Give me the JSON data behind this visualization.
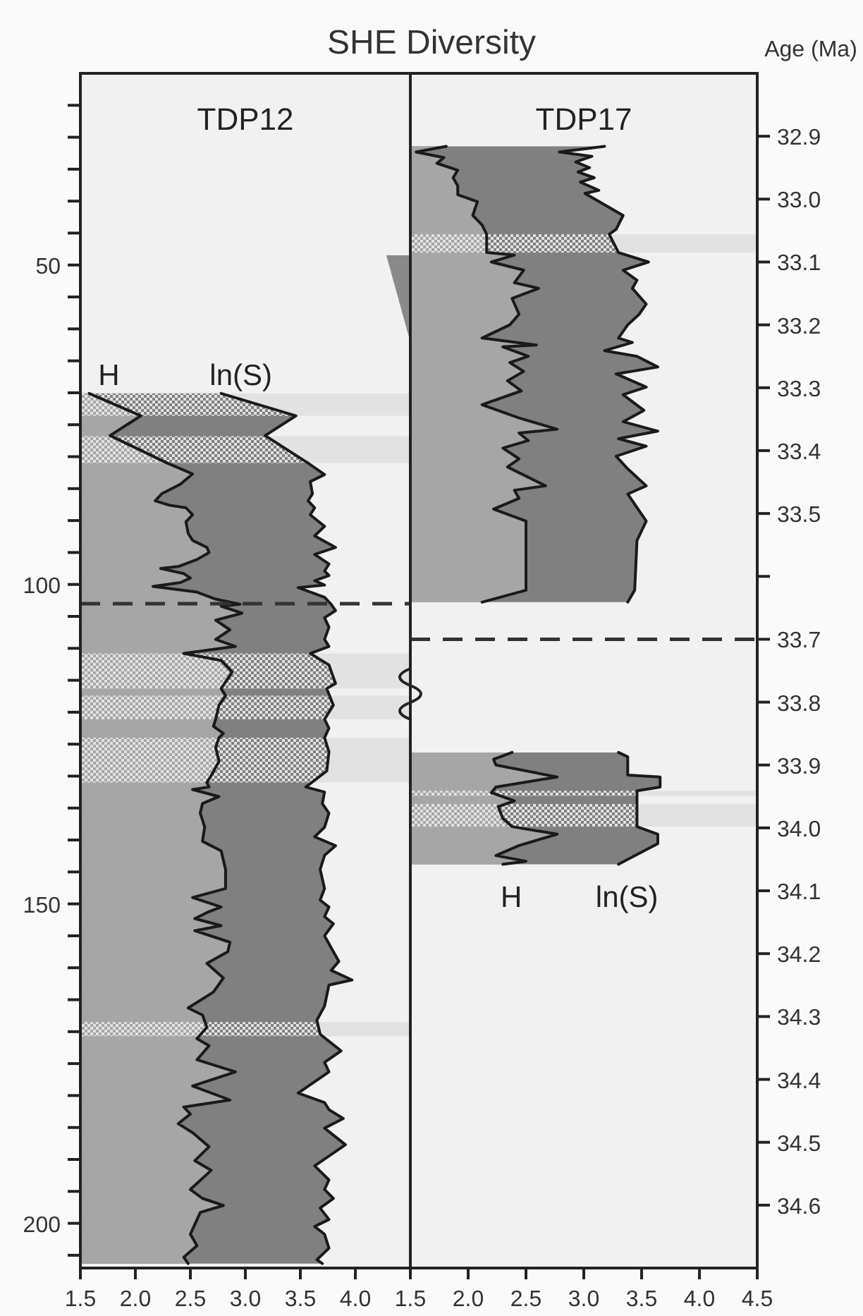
{
  "chart_data": [
    {
      "type": "area",
      "orientation": "horizontal",
      "title": "SHE Diversity",
      "subtitle": "TDP12",
      "xlim": [
        1.5,
        4.5
      ],
      "xticks": [
        1.5,
        {
          "value": 2,
          "label": "2.0"
        },
        2.5,
        {
          "value": 3,
          "label": "3.0"
        },
        3.5,
        {
          "value": 4,
          "label": "4.0"
        },
        {
          "value": 4.5,
          "label": null
        }
      ],
      "ylim": [
        207,
        20
      ],
      "yticks": [
        {
          "value": 25,
          "label": null
        },
        {
          "value": 30,
          "label": null
        },
        {
          "value": 35,
          "label": null
        },
        {
          "value": 40,
          "label": null
        },
        {
          "value": 45,
          "label": null
        },
        50,
        {
          "value": 55,
          "label": null
        },
        {
          "value": 60,
          "label": null
        },
        {
          "value": 65,
          "label": null
        },
        {
          "value": 70,
          "label": null
        },
        {
          "value": 75,
          "label": null
        },
        {
          "value": 80,
          "label": null
        },
        {
          "value": 85,
          "label": null
        },
        {
          "value": 90,
          "label": null
        },
        {
          "value": 95,
          "label": null
        },
        100,
        {
          "value": 105,
          "label": null
        },
        {
          "value": 110,
          "label": null
        },
        {
          "value": 115,
          "label": null
        },
        {
          "value": 120,
          "label": null
        },
        {
          "value": 125,
          "label": null
        },
        {
          "value": 130,
          "label": null
        },
        {
          "value": 135,
          "label": null
        },
        {
          "value": 140,
          "label": null
        },
        {
          "value": 145,
          "label": null
        },
        150,
        {
          "value": 155,
          "label": null
        },
        {
          "value": 160,
          "label": null
        },
        {
          "value": 165,
          "label": null
        },
        {
          "value": 170,
          "label": null
        },
        {
          "value": 175,
          "label": null
        },
        {
          "value": 180,
          "label": null
        },
        {
          "value": 185,
          "label": null
        },
        {
          "value": 190,
          "label": null
        },
        {
          "value": 195,
          "label": null
        },
        200,
        {
          "value": 205,
          "label": null
        }
      ],
      "series": [
        {
          "name": "H",
          "color": "#a6a6a6",
          "x": [
            70.1,
            73.6,
            76.7,
            81.0,
            82.7,
            84.3,
            85.8,
            86.9,
            87.6,
            88.0,
            89.1,
            90.2,
            92.0,
            93.1,
            94.2,
            95.0,
            96.1,
            97.2,
            97.5,
            98.3,
            99.0,
            99.7,
            100.3,
            101.2,
            102.3,
            103.1,
            103.4,
            104.5,
            105.6,
            107.1,
            108.6,
            109.7,
            110.8,
            111.9,
            113.7,
            116.3,
            117.4,
            118.9,
            121.1,
            122.2,
            123.3,
            124.0,
            125.5,
            127.7,
            129.9,
            131.0,
            131.7,
            132.1,
            133.2,
            134.3,
            135.8,
            138.0,
            140.2,
            141.7,
            144.6,
            147.6,
            149.0,
            150.5,
            151.2,
            152.3,
            153.4,
            154.2,
            156.0,
            157.5,
            159.3,
            161.6,
            163.8,
            166.3,
            167.4,
            169.3,
            171.1,
            172.2,
            174.4,
            176.3,
            178.5,
            180.7,
            181.8,
            182.9,
            184.4,
            185.8,
            188.0,
            190.2,
            191.7,
            194.7,
            196.1,
            197.2,
            198.3,
            201.7,
            203.5,
            205.3,
            206.3
          ],
          "values": [
            1.58,
            2.05,
            1.77,
            2.29,
            2.52,
            2.41,
            2.24,
            2.18,
            2.31,
            2.46,
            2.52,
            2.46,
            2.48,
            2.52,
            2.65,
            2.67,
            2.56,
            2.39,
            2.23,
            2.44,
            2.5,
            2.41,
            2.16,
            2.56,
            2.73,
            2.95,
            2.78,
            2.97,
            2.73,
            2.86,
            2.73,
            2.91,
            2.44,
            2.78,
            2.88,
            2.78,
            2.82,
            2.76,
            2.73,
            2.71,
            2.8,
            2.76,
            2.73,
            2.76,
            2.69,
            2.65,
            2.67,
            2.52,
            2.76,
            2.61,
            2.59,
            2.63,
            2.61,
            2.78,
            2.82,
            2.82,
            2.52,
            2.78,
            2.67,
            2.54,
            2.78,
            2.54,
            2.86,
            2.84,
            2.65,
            2.8,
            2.71,
            2.48,
            2.61,
            2.65,
            2.56,
            2.67,
            2.56,
            2.91,
            2.52,
            2.86,
            2.44,
            2.5,
            2.39,
            2.52,
            2.67,
            2.54,
            2.69,
            2.5,
            2.61,
            2.8,
            2.59,
            2.5,
            2.56,
            2.44,
            2.48
          ]
        },
        {
          "name": "ln(S)",
          "color": "#808080",
          "x": [
            70.1,
            73.6,
            76.7,
            81.0,
            82.8,
            83.9,
            85.8,
            86.9,
            88.0,
            89.1,
            90.9,
            92.4,
            94.2,
            95.3,
            96.8,
            97.9,
            98.6,
            99.4,
            100.1,
            100.5,
            102.0,
            103.1,
            104.1,
            105.2,
            106.7,
            108.6,
            109.7,
            110.8,
            112.6,
            115.5,
            116.3,
            118.9,
            121.1,
            122.5,
            124.0,
            126.2,
            129.2,
            131.7,
            132.5,
            134.3,
            135.8,
            138.0,
            139.5,
            140.9,
            142.4,
            144.6,
            147.6,
            149.4,
            150.5,
            152.0,
            153.1,
            155.0,
            159.0,
            160.4,
            161.9,
            162.7,
            166.0,
            168.2,
            170.4,
            173.0,
            174.8,
            176.3,
            179.6,
            181.1,
            182.2,
            183.6,
            185.1,
            187.7,
            191.0,
            193.2,
            194.7,
            196.1,
            197.6,
            199.4,
            200.5,
            201.7,
            203.9,
            205.7,
            206.3
          ],
          "values": [
            2.78,
            3.46,
            3.18,
            3.57,
            3.72,
            3.59,
            3.61,
            3.57,
            3.63,
            3.59,
            3.72,
            3.63,
            3.82,
            3.63,
            3.76,
            3.72,
            3.76,
            3.63,
            3.72,
            3.48,
            3.72,
            3.78,
            3.82,
            3.72,
            3.76,
            3.72,
            3.76,
            3.59,
            3.76,
            3.82,
            3.74,
            3.8,
            3.72,
            3.76,
            3.72,
            3.76,
            3.74,
            3.55,
            3.72,
            3.7,
            3.76,
            3.72,
            3.63,
            3.82,
            3.72,
            3.68,
            3.72,
            3.68,
            3.76,
            3.72,
            3.8,
            3.72,
            3.85,
            3.78,
            3.97,
            3.76,
            3.72,
            3.65,
            3.68,
            3.87,
            3.72,
            3.76,
            3.48,
            3.72,
            3.76,
            3.89,
            3.72,
            3.91,
            3.63,
            3.76,
            3.72,
            3.8,
            3.68,
            3.76,
            3.63,
            3.72,
            3.76,
            3.65,
            3.7
          ]
        }
      ],
      "bands": [
        {
          "axis": "y",
          "from": 70.1,
          "to": 73.6
        },
        {
          "axis": "y",
          "from": 76.8,
          "to": 81.0
        },
        {
          "axis": "y",
          "from": 110.8,
          "to": 116.3
        },
        {
          "axis": "y",
          "from": 117.4,
          "to": 121.1
        },
        {
          "axis": "y",
          "from": 124.0,
          "to": 131.0
        },
        {
          "axis": "y",
          "from": 168.5,
          "to": 170.7
        }
      ],
      "ref_lines": [
        {
          "axis": "y",
          "value": 103,
          "line_style": "dashed"
        }
      ]
    },
    {
      "type": "area",
      "orientation": "horizontal",
      "subtitle": "TDP17",
      "ylabel": "Age (Ma)",
      "xlim": [
        1.5,
        4.5
      ],
      "xticks": [
        1.5,
        {
          "value": 2,
          "label": "2.0"
        },
        2.5,
        {
          "value": 3,
          "label": "3.0"
        },
        3.5,
        {
          "value": 4,
          "label": "4.0"
        },
        4.5
      ],
      "ylim": [
        34.7,
        32.8
      ],
      "yticks": [
        32.9,
        {
          "value": 33,
          "label": "33.0"
        },
        33.1,
        33.2,
        33.3,
        33.4,
        33.5,
        {
          "value": 33.6,
          "label": null
        },
        33.7,
        33.8,
        33.9,
        {
          "value": 34,
          "label": "34.0"
        },
        34.1,
        34.2,
        34.3,
        34.4,
        34.5,
        34.6
      ],
      "series": [
        {
          "name": "H",
          "color": "#a6a6a6",
          "x": [
            32.916,
            32.925,
            32.934,
            32.943,
            32.954,
            32.966,
            32.979,
            32.993,
            33.004,
            33.026,
            33.041,
            33.056,
            33.085,
            33.089,
            33.1,
            33.113,
            33.133,
            33.142,
            33.158,
            33.183,
            33.2,
            33.221,
            33.232,
            33.235,
            33.25,
            33.26,
            33.274,
            33.289,
            33.305,
            33.327,
            33.348,
            33.366,
            33.372,
            33.384,
            33.396,
            33.413,
            33.426,
            33.456,
            33.463,
            33.476,
            33.493,
            33.512,
            33.622,
            33.641,
            33.76,
            33.88,
            33.891,
            33.9,
            33.919,
            33.935,
            33.944,
            33.957,
            33.966,
            33.985,
            33.998,
            34.01,
            34.028,
            34.044,
            34.053,
            34.058
          ],
          "values": [
            1.81,
            1.55,
            1.79,
            1.73,
            1.91,
            1.87,
            1.91,
            1.91,
            2.08,
            2.04,
            2.12,
            2.16,
            2.16,
            2.4,
            2.2,
            2.48,
            2.4,
            2.61,
            2.38,
            2.44,
            2.36,
            2.12,
            2.59,
            2.3,
            2.52,
            2.36,
            2.48,
            2.34,
            2.46,
            2.12,
            2.44,
            2.77,
            2.44,
            2.52,
            2.3,
            2.44,
            2.34,
            2.67,
            2.4,
            2.44,
            2.22,
            2.5,
            2.5,
            2.12,
            null,
            2.38,
            2.22,
            2.24,
            2.77,
            2.24,
            2.2,
            2.4,
            2.26,
            2.3,
            2.38,
            2.77,
            2.44,
            2.24,
            2.5,
            2.3
          ]
        },
        {
          "name": "ln(S)",
          "color": "#808080",
          "x": [
            32.916,
            32.925,
            32.932,
            32.941,
            32.95,
            32.957,
            32.966,
            32.973,
            32.986,
            32.991,
            33.026,
            33.048,
            33.056,
            33.085,
            33.1,
            33.113,
            33.129,
            33.142,
            33.167,
            33.183,
            33.2,
            33.221,
            33.228,
            33.241,
            33.25,
            33.267,
            33.278,
            33.299,
            33.311,
            33.336,
            33.354,
            33.369,
            33.381,
            33.393,
            33.409,
            33.429,
            33.456,
            33.469,
            33.512,
            33.543,
            33.622,
            33.641,
            33.76,
            33.88,
            33.887,
            33.916,
            33.919,
            33.935,
            33.941,
            33.957,
            33.998,
            34.01,
            34.025,
            34.05,
            34.058
          ],
          "values": [
            3.18,
            2.79,
            3.07,
            2.93,
            3.05,
            2.95,
            3.09,
            2.97,
            3.13,
            3.01,
            3.34,
            3.28,
            3.22,
            3.3,
            3.56,
            3.34,
            3.46,
            3.42,
            3.54,
            3.48,
            3.38,
            3.3,
            3.42,
            3.18,
            3.46,
            3.64,
            3.28,
            3.54,
            3.34,
            3.52,
            3.34,
            3.64,
            3.3,
            3.54,
            3.28,
            3.38,
            3.54,
            3.38,
            3.54,
            3.46,
            3.44,
            3.38,
            null,
            3.3,
            3.38,
            3.38,
            3.66,
            3.66,
            3.46,
            3.46,
            3.46,
            3.64,
            3.64,
            3.38,
            3.3
          ]
        }
      ],
      "bands": [
        {
          "axis": "y",
          "from": 33.056,
          "to": 33.085
        },
        {
          "axis": "y",
          "from": 33.941,
          "to": 33.949
        },
        {
          "axis": "y",
          "from": 33.962,
          "to": 33.998
        }
      ],
      "ref_lines": [
        {
          "axis": "y",
          "value": 33.7,
          "line_style": "dashed"
        }
      ]
    }
  ]
}
